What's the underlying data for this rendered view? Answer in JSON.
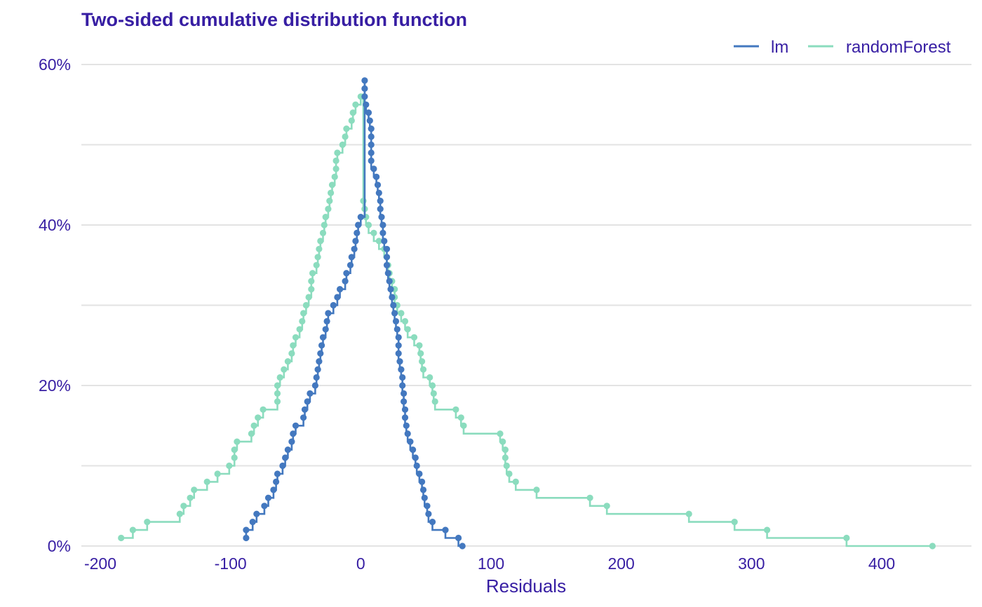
{
  "chart_data": {
    "type": "line",
    "title": "Two-sided cumulative distribution function",
    "xlabel": "Residuals",
    "ylabel": "",
    "xlim": [
      -205,
      470
    ],
    "ylim": [
      0,
      0.6
    ],
    "x_ticks": [
      -200,
      -100,
      0,
      100,
      200,
      300,
      400
    ],
    "x_tick_labels": [
      "-200",
      "-100",
      "0",
      "100",
      "200",
      "300",
      "400"
    ],
    "y_ticks": [
      0,
      0.2,
      0.4,
      0.6
    ],
    "y_tick_labels": [
      "0%",
      "20%",
      "40%",
      "60%"
    ],
    "y_minor_gridlines": [
      0.1,
      0.3,
      0.5
    ],
    "grid": "horizontal",
    "legend_position": "top-right",
    "series": [
      {
        "name": "lm",
        "color": "#4378bf",
        "left": [
          [
            -88,
            0.01
          ],
          [
            -88,
            0.02
          ],
          [
            -83,
            0.03
          ],
          [
            -80,
            0.04
          ],
          [
            -74,
            0.05
          ],
          [
            -71,
            0.06
          ],
          [
            -67,
            0.07
          ],
          [
            -65,
            0.08
          ],
          [
            -64,
            0.09
          ],
          [
            -60,
            0.1
          ],
          [
            -58,
            0.11
          ],
          [
            -56,
            0.12
          ],
          [
            -53,
            0.13
          ],
          [
            -52,
            0.14
          ],
          [
            -50,
            0.15
          ],
          [
            -44,
            0.16
          ],
          [
            -43,
            0.17
          ],
          [
            -41,
            0.18
          ],
          [
            -39,
            0.19
          ],
          [
            -35,
            0.2
          ],
          [
            -34,
            0.21
          ],
          [
            -33,
            0.22
          ],
          [
            -32,
            0.23
          ],
          [
            -31,
            0.24
          ],
          [
            -30,
            0.25
          ],
          [
            -29,
            0.26
          ],
          [
            -27,
            0.27
          ],
          [
            -26,
            0.28
          ],
          [
            -25,
            0.29
          ],
          [
            -21,
            0.3
          ],
          [
            -18,
            0.31
          ],
          [
            -16,
            0.32
          ],
          [
            -12,
            0.33
          ],
          [
            -11,
            0.34
          ],
          [
            -8,
            0.35
          ],
          [
            -7,
            0.36
          ],
          [
            -5,
            0.37
          ],
          [
            -4,
            0.38
          ],
          [
            -3,
            0.39
          ],
          [
            -2,
            0.4
          ],
          [
            0,
            0.41
          ]
        ],
        "right": [
          [
            3,
            0.58
          ],
          [
            3,
            0.57
          ],
          [
            3,
            0.56
          ],
          [
            4,
            0.55
          ],
          [
            6,
            0.54
          ],
          [
            7,
            0.53
          ],
          [
            8,
            0.52
          ],
          [
            8,
            0.51
          ],
          [
            8,
            0.5
          ],
          [
            8,
            0.49
          ],
          [
            8,
            0.48
          ],
          [
            10,
            0.47
          ],
          [
            12,
            0.46
          ],
          [
            13,
            0.45
          ],
          [
            14,
            0.44
          ],
          [
            15,
            0.43
          ],
          [
            15,
            0.42
          ],
          [
            16,
            0.41
          ],
          [
            17,
            0.4
          ],
          [
            17,
            0.39
          ],
          [
            18,
            0.38
          ],
          [
            20,
            0.37
          ],
          [
            20,
            0.36
          ],
          [
            20,
            0.35
          ],
          [
            21,
            0.34
          ],
          [
            22,
            0.33
          ],
          [
            23,
            0.32
          ],
          [
            24,
            0.31
          ],
          [
            25,
            0.3
          ],
          [
            26,
            0.29
          ],
          [
            27,
            0.28
          ],
          [
            28,
            0.27
          ],
          [
            29,
            0.26
          ],
          [
            29,
            0.25
          ],
          [
            29,
            0.24
          ],
          [
            30,
            0.23
          ],
          [
            31,
            0.22
          ],
          [
            32,
            0.21
          ],
          [
            32,
            0.2
          ],
          [
            33,
            0.19
          ],
          [
            33,
            0.18
          ],
          [
            34,
            0.17
          ],
          [
            34,
            0.16
          ],
          [
            35,
            0.15
          ],
          [
            36,
            0.14
          ],
          [
            38,
            0.13
          ],
          [
            40,
            0.12
          ],
          [
            42,
            0.11
          ],
          [
            43,
            0.1
          ],
          [
            45,
            0.09
          ],
          [
            47,
            0.08
          ],
          [
            48,
            0.07
          ],
          [
            49,
            0.06
          ],
          [
            51,
            0.05
          ],
          [
            52,
            0.04
          ],
          [
            55,
            0.03
          ],
          [
            65,
            0.02
          ],
          [
            75,
            0.01
          ],
          [
            78,
            0.0
          ]
        ]
      },
      {
        "name": "randomForest",
        "color": "#8bdcbe",
        "left": [
          [
            -184,
            0.01
          ],
          [
            -175,
            0.02
          ],
          [
            -164,
            0.03
          ],
          [
            -139,
            0.04
          ],
          [
            -136,
            0.05
          ],
          [
            -131,
            0.06
          ],
          [
            -128,
            0.07
          ],
          [
            -118,
            0.08
          ],
          [
            -110,
            0.09
          ],
          [
            -101,
            0.1
          ],
          [
            -97,
            0.11
          ],
          [
            -97,
            0.12
          ],
          [
            -95,
            0.13
          ],
          [
            -84,
            0.14
          ],
          [
            -82,
            0.15
          ],
          [
            -79,
            0.16
          ],
          [
            -75,
            0.17
          ],
          [
            -64,
            0.18
          ],
          [
            -64,
            0.19
          ],
          [
            -64,
            0.2
          ],
          [
            -62,
            0.21
          ],
          [
            -59,
            0.22
          ],
          [
            -56,
            0.23
          ],
          [
            -53,
            0.24
          ],
          [
            -52,
            0.25
          ],
          [
            -50,
            0.26
          ],
          [
            -47,
            0.27
          ],
          [
            -45,
            0.28
          ],
          [
            -44,
            0.29
          ],
          [
            -42,
            0.3
          ],
          [
            -40,
            0.31
          ],
          [
            -38,
            0.32
          ],
          [
            -38,
            0.33
          ],
          [
            -37,
            0.34
          ],
          [
            -34,
            0.35
          ],
          [
            -33,
            0.36
          ],
          [
            -32,
            0.37
          ],
          [
            -31,
            0.38
          ],
          [
            -29,
            0.39
          ],
          [
            -28,
            0.4
          ],
          [
            -27,
            0.41
          ],
          [
            -25,
            0.42
          ],
          [
            -24,
            0.43
          ],
          [
            -23,
            0.44
          ],
          [
            -22,
            0.45
          ],
          [
            -20,
            0.46
          ],
          [
            -19,
            0.47
          ],
          [
            -19,
            0.48
          ],
          [
            -18,
            0.49
          ],
          [
            -14,
            0.5
          ],
          [
            -12,
            0.51
          ],
          [
            -11,
            0.52
          ],
          [
            -7,
            0.53
          ],
          [
            -6,
            0.54
          ],
          [
            -4,
            0.55
          ],
          [
            0,
            0.56
          ]
        ],
        "right": [
          [
            2,
            0.56
          ],
          [
            2,
            0.43
          ],
          [
            3,
            0.42
          ],
          [
            4,
            0.41
          ],
          [
            6,
            0.4
          ],
          [
            10,
            0.39
          ],
          [
            14,
            0.38
          ],
          [
            18,
            0.37
          ],
          [
            20,
            0.36
          ],
          [
            21,
            0.35
          ],
          [
            22,
            0.34
          ],
          [
            24,
            0.33
          ],
          [
            26,
            0.32
          ],
          [
            26,
            0.31
          ],
          [
            28,
            0.3
          ],
          [
            31,
            0.29
          ],
          [
            34,
            0.28
          ],
          [
            36,
            0.27
          ],
          [
            41,
            0.26
          ],
          [
            45,
            0.25
          ],
          [
            46,
            0.24
          ],
          [
            47,
            0.23
          ],
          [
            48,
            0.22
          ],
          [
            53,
            0.21
          ],
          [
            55,
            0.2
          ],
          [
            56,
            0.19
          ],
          [
            57,
            0.18
          ],
          [
            73,
            0.17
          ],
          [
            77,
            0.16
          ],
          [
            79,
            0.15
          ],
          [
            107,
            0.14
          ],
          [
            109,
            0.13
          ],
          [
            111,
            0.12
          ],
          [
            111,
            0.11
          ],
          [
            112,
            0.1
          ],
          [
            114,
            0.09
          ],
          [
            119,
            0.08
          ],
          [
            135,
            0.07
          ],
          [
            176,
            0.06
          ],
          [
            189,
            0.05
          ],
          [
            252,
            0.04
          ],
          [
            287,
            0.03
          ],
          [
            312,
            0.02
          ],
          [
            373,
            0.01
          ],
          [
            439,
            0.0
          ]
        ]
      }
    ]
  }
}
